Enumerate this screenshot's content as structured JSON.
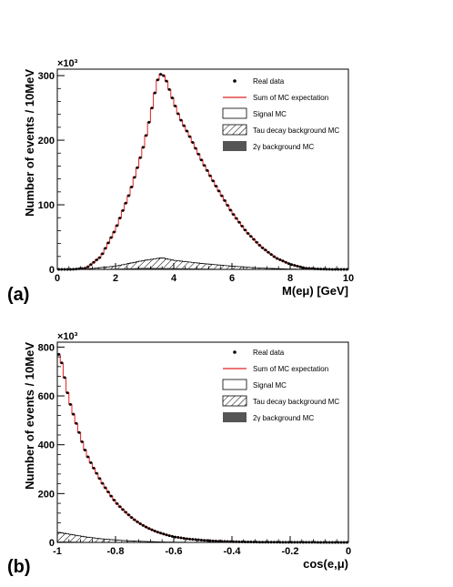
{
  "panels": [
    {
      "label": "(a)"
    },
    {
      "label": "(b)"
    }
  ],
  "colors": {
    "sum_mc": "#e02020",
    "data": "#000000",
    "two_gamma_fill": "#555555",
    "frame": "#000000"
  },
  "chart_data": [
    {
      "type": "line",
      "xlabel": "M(eμ) [GeV]",
      "ylabel": "Number of events / 10MeV",
      "y_multiplier": "×10³",
      "xlim": [
        0,
        10
      ],
      "ylim": [
        0,
        310
      ],
      "xticks": [
        0,
        2,
        4,
        6,
        8,
        10
      ],
      "yticks": [
        0,
        100,
        200,
        300
      ],
      "legend_position": "top-right",
      "legend": [
        {
          "name": "Real data",
          "style": "marker"
        },
        {
          "name": "Sum of MC expectation",
          "style": "line"
        },
        {
          "name": "Signal MC",
          "style": "box"
        },
        {
          "name": "Tau decay background MC",
          "style": "hatch"
        },
        {
          "name": "2γ background MC",
          "style": "fill"
        }
      ],
      "series": [
        {
          "name": "Real data",
          "x": [
            0.5,
            1.0,
            1.5,
            2.0,
            2.5,
            2.8,
            3.0,
            3.2,
            3.4,
            3.5,
            3.6,
            3.7,
            3.8,
            3.9,
            4.0,
            4.2,
            4.5,
            5.0,
            5.5,
            6.0,
            6.5,
            7.0,
            7.5,
            8.0,
            8.5,
            9.0,
            9.5,
            10.0
          ],
          "y": [
            0,
            2,
            20,
            62,
            120,
            165,
            197,
            238,
            285,
            302,
            302,
            298,
            285,
            272,
            259,
            235,
            210,
            165,
            125,
            88,
            58,
            35,
            18,
            8,
            2,
            0.5,
            0,
            0
          ]
        },
        {
          "name": "Sum of MC expectation",
          "x": [
            0.5,
            1.0,
            1.5,
            2.0,
            2.5,
            2.8,
            3.0,
            3.2,
            3.4,
            3.5,
            3.6,
            3.7,
            3.8,
            3.9,
            4.0,
            4.2,
            4.5,
            5.0,
            5.5,
            6.0,
            6.5,
            7.0,
            7.5,
            8.0,
            8.5,
            9.0,
            9.5,
            10.0
          ],
          "y": [
            0,
            2,
            20,
            62,
            120,
            165,
            197,
            238,
            285,
            302,
            302,
            298,
            285,
            272,
            259,
            235,
            210,
            165,
            125,
            88,
            58,
            35,
            18,
            8,
            2,
            0.5,
            0,
            0
          ]
        },
        {
          "name": "Tau decay background MC",
          "x": [
            0,
            1.0,
            2.0,
            3.0,
            3.6,
            4.0,
            5.0,
            6.0,
            7.0,
            8.0,
            9.0
          ],
          "y": [
            0,
            0.5,
            5,
            14,
            18,
            14,
            9,
            5,
            2,
            0.5,
            0
          ]
        },
        {
          "name": "2γ background MC",
          "x": [
            0,
            1.0,
            2.0,
            3.0,
            4.0,
            5.0,
            6.0,
            7.0,
            8.0
          ],
          "y": [
            0,
            0.2,
            1,
            2.5,
            2,
            1.2,
            0.6,
            0.2,
            0
          ]
        }
      ]
    },
    {
      "type": "line",
      "xlabel": "cos(e,μ)",
      "ylabel": "Number of events / 10MeV",
      "y_multiplier": "×10³",
      "xlim": [
        -1,
        0
      ],
      "ylim": [
        0,
        820
      ],
      "xticks": [
        -1,
        -0.8,
        -0.6,
        -0.4,
        -0.2,
        0
      ],
      "yticks": [
        0,
        200,
        400,
        600,
        800
      ],
      "legend_position": "top-right",
      "legend": [
        {
          "name": "Real data",
          "style": "marker"
        },
        {
          "name": "Sum of MC expectation",
          "style": "line"
        },
        {
          "name": "Signal MC",
          "style": "box"
        },
        {
          "name": "Tau decay background MC",
          "style": "hatch"
        },
        {
          "name": "2γ background MC",
          "style": "fill"
        }
      ],
      "series": [
        {
          "name": "Real data",
          "x": [
            -1.0,
            -0.99,
            -0.98,
            -0.97,
            -0.96,
            -0.95,
            -0.94,
            -0.93,
            -0.92,
            -0.91,
            -0.9,
            -0.88,
            -0.86,
            -0.84,
            -0.82,
            -0.8,
            -0.78,
            -0.76,
            -0.74,
            -0.72,
            -0.7,
            -0.68,
            -0.66,
            -0.64,
            -0.62,
            -0.6,
            -0.55,
            -0.5,
            -0.45,
            -0.4,
            -0.3,
            -0.2,
            -0.1,
            0.0
          ],
          "y": [
            780,
            760,
            710,
            640,
            585,
            545,
            505,
            470,
            430,
            395,
            362,
            315,
            272,
            232,
            198,
            165,
            140,
            118,
            97,
            80,
            66,
            54,
            44,
            36,
            29,
            23,
            14,
            9,
            5,
            3,
            1,
            0.5,
            0.2,
            0
          ]
        },
        {
          "name": "Sum of MC expectation",
          "x": [
            -1.0,
            -0.99,
            -0.98,
            -0.97,
            -0.96,
            -0.95,
            -0.94,
            -0.93,
            -0.92,
            -0.91,
            -0.9,
            -0.88,
            -0.86,
            -0.84,
            -0.82,
            -0.8,
            -0.78,
            -0.76,
            -0.74,
            -0.72,
            -0.7,
            -0.68,
            -0.66,
            -0.64,
            -0.62,
            -0.6,
            -0.55,
            -0.5,
            -0.45,
            -0.4,
            -0.3,
            -0.2,
            -0.1,
            0.0
          ],
          "y": [
            780,
            760,
            710,
            640,
            585,
            545,
            505,
            470,
            430,
            395,
            362,
            315,
            272,
            232,
            198,
            165,
            140,
            118,
            97,
            80,
            66,
            54,
            44,
            36,
            29,
            23,
            14,
            9,
            5,
            3,
            1,
            0.5,
            0.2,
            0
          ]
        },
        {
          "name": "Tau decay background MC",
          "x": [
            -1.0,
            -0.97,
            -0.94,
            -0.9,
            -0.85,
            -0.8,
            -0.75,
            -0.7,
            -0.65,
            -0.6,
            -0.55,
            -0.5
          ],
          "y": [
            42,
            36,
            30,
            22,
            15,
            10,
            6,
            4,
            2,
            1,
            0.5,
            0
          ]
        },
        {
          "name": "2γ background MC",
          "x": [
            -1.0,
            -0.95,
            -0.9,
            -0.8,
            -0.7,
            -0.6
          ],
          "y": [
            4,
            3,
            2,
            1,
            0.5,
            0
          ]
        }
      ]
    }
  ]
}
